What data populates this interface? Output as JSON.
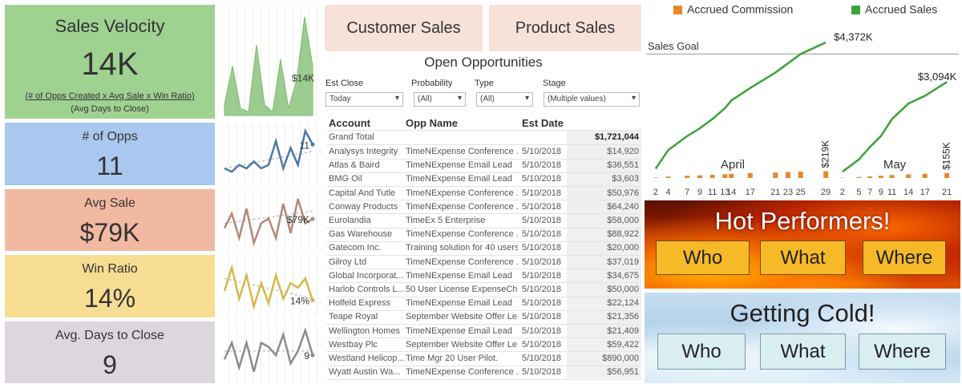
{
  "kpis": [
    {
      "title": "Sales Velocity",
      "value": "14K",
      "formula": "(# of Opps Created x Avg Sale x Win Ratio)",
      "divisor": "(Avg Days to Close)",
      "color": "#9fd191"
    },
    {
      "title": "# of Opps",
      "value": "11",
      "color": "#a9c8ef"
    },
    {
      "title": "Avg Sale",
      "value": "$79K",
      "color": "#f2b9a2"
    },
    {
      "title": "Win Ratio",
      "value": "14%",
      "color": "#f7dd92"
    },
    {
      "title": "Avg. Days to Close",
      "value": "9",
      "color": "#ddd6df"
    }
  ],
  "sparklines": [
    {
      "type": "area",
      "color": "#7cbb6b",
      "values": [
        3,
        14,
        2,
        1,
        20,
        3,
        1,
        16,
        2,
        10,
        28,
        14
      ],
      "ylim": [
        0,
        30
      ],
      "end_label": "$14K"
    },
    {
      "type": "line",
      "color": "#4e79a7",
      "values": [
        4,
        3,
        5,
        4,
        6,
        4,
        5,
        12,
        4,
        10,
        5,
        15,
        11
      ],
      "ylim": [
        0,
        16
      ],
      "trend": [
        4,
        9
      ],
      "end_label": "11"
    },
    {
      "type": "line",
      "color": "#b08a7a",
      "values": [
        60,
        90,
        40,
        100,
        30,
        70,
        80,
        40,
        110,
        50,
        120,
        70,
        79
      ],
      "ylim": [
        20,
        130
      ],
      "trend": [
        70,
        95
      ],
      "end_label": "$79K"
    },
    {
      "type": "line",
      "color": "#d4b84a",
      "values": [
        20,
        35,
        15,
        30,
        10,
        25,
        12,
        30,
        15,
        25,
        22,
        28,
        14
      ],
      "ylim": [
        5,
        40
      ],
      "trend": [
        28,
        15
      ],
      "end_label": "14%"
    },
    {
      "type": "line",
      "color": "#8c8c8c",
      "values": [
        8,
        12,
        6,
        12,
        5,
        12,
        11,
        9,
        14,
        7,
        10,
        15,
        9
      ],
      "ylim": [
        3,
        16
      ],
      "trend": [
        10,
        10
      ],
      "end_label": "9"
    }
  ],
  "nav_buttons": [
    "Customer Sales",
    "Product Sales"
  ],
  "opportunities": {
    "title": "Open Opportunities",
    "filters": [
      {
        "label": "Est Close",
        "value": "Today"
      },
      {
        "label": "Probability",
        "value": "(All)"
      },
      {
        "label": "Type",
        "value": "(All)"
      },
      {
        "label": "Stage",
        "value": "(Multiple values)"
      }
    ],
    "columns": [
      "Account",
      "Opp Name",
      "Est Date"
    ],
    "grand_total": {
      "label": "Grand Total",
      "amount": "$1,721,044"
    },
    "rows": [
      [
        "Analysys Integrity",
        "TimeNExpense Conference ...",
        "5/10/2018",
        "$14,920"
      ],
      [
        "Atlas & Baird",
        "TimeNExpense Email Lead",
        "5/10/2018",
        "$36,551"
      ],
      [
        "BMG Oil",
        "TimeNExpense Email Lead",
        "5/10/2018",
        "$3,603"
      ],
      [
        "Capital And Tutle",
        "TimeNExpense Conference ...",
        "5/10/2018",
        "$50,976"
      ],
      [
        "Conway Products",
        "TimeNExpense Conference ...",
        "5/10/2018",
        "$64,240"
      ],
      [
        "Eurolandia",
        "TimeEx 5 Enterprise",
        "5/10/2018",
        "$58,000"
      ],
      [
        "Gas Warehouse",
        "TimeNExpense Conference ...",
        "5/10/2018",
        "$88,922"
      ],
      [
        "Gatecom Inc.",
        "Training solution for 40 users",
        "5/10/2018",
        "$20,000"
      ],
      [
        "Gilroy Ltd",
        "TimeNExpense Conference ...",
        "5/10/2018",
        "$37,019"
      ],
      [
        "Global Incorporat...",
        "TimeNExpense Email Lead",
        "5/10/2018",
        "$34,675"
      ],
      [
        "Harlob Controls L...",
        "50 User License ExpenseChe...",
        "5/10/2018",
        "$50,000"
      ],
      [
        "Holfeld Express",
        "TimeNExpense Email Lead",
        "5/10/2018",
        "$22,124"
      ],
      [
        "Teape Royal",
        "September Website Offer Le...",
        "5/10/2018",
        "$21,356"
      ],
      [
        "Wellington Homes",
        "TimeNExpense Email Lead",
        "5/10/2018",
        "$21,409"
      ],
      [
        "Westbay Plc",
        "September Website Offer Le...",
        "5/10/2018",
        "$59,422"
      ],
      [
        "Westland Helicop...",
        "Time Mgr 20 User Pilot.",
        "5/10/2018",
        "$890,000"
      ],
      [
        "Wyatt Austin Wa...",
        "TimeNExpense Conference ...",
        "5/10/2018",
        "$56,951"
      ]
    ]
  },
  "chart_data": {
    "type": "line",
    "series": [
      {
        "name": "Accrued Commission",
        "color": "#e8872a"
      },
      {
        "name": "Accrued Sales",
        "color": "#3aa33a"
      }
    ],
    "ylim": [
      0,
      4500
    ],
    "reference": {
      "label": "Sales Goal",
      "value": 4000
    },
    "panels": [
      {
        "label": "April",
        "xlim": [
          1,
          30
        ],
        "x": [
          2,
          4,
          7,
          9,
          11,
          13,
          14,
          17,
          21,
          23,
          25,
          29
        ],
        "sales": [
          300,
          900,
          1350,
          1600,
          1900,
          2250,
          2500,
          2900,
          3400,
          3700,
          4000,
          4372
        ],
        "sales_label": "$4,372K",
        "commission": [
          15,
          45,
          70,
          85,
          100,
          120,
          135,
          155,
          175,
          190,
          205,
          219
        ],
        "commission_label": "$219K"
      },
      {
        "label": "May",
        "xlim": [
          1,
          22
        ],
        "x": [
          2,
          5,
          7,
          9,
          11,
          14,
          17,
          21
        ],
        "sales": [
          200,
          600,
          1000,
          1350,
          1900,
          2400,
          2650,
          3094
        ],
        "sales_label": "$3,094K",
        "commission": [
          10,
          30,
          50,
          70,
          95,
          115,
          135,
          155
        ],
        "commission_label": "$155K"
      }
    ]
  },
  "hot_performers": {
    "title": "Hot Performers!",
    "buttons": [
      "Who",
      "What",
      "Where"
    ]
  },
  "getting_cold": {
    "title": "Getting Cold!",
    "buttons": [
      "Who",
      "What",
      "Where"
    ]
  }
}
